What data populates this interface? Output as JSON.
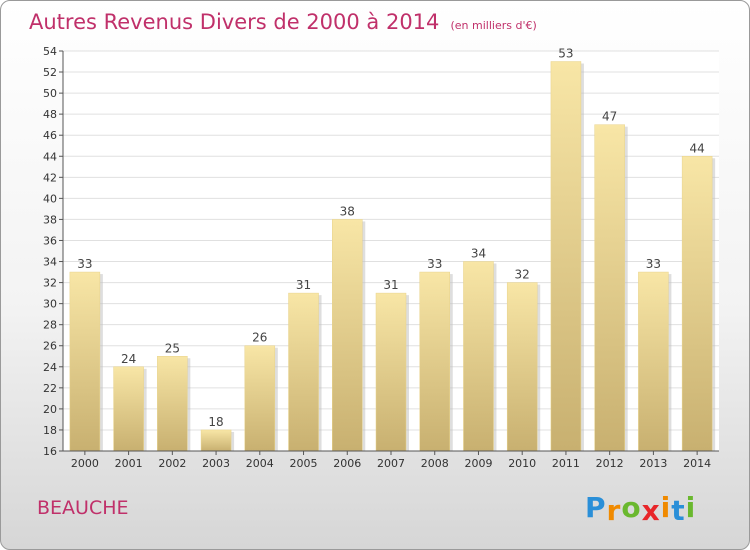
{
  "header": {
    "title": "Autres Revenus Divers de 2000 à 2014",
    "subtitle": "(en milliers d'€)"
  },
  "footer": {
    "commune": "BEAUCHE",
    "logo_letters": [
      "P",
      "r",
      "o",
      "x",
      "i",
      "t",
      "i"
    ]
  },
  "colors": {
    "title": "#c0306a",
    "bar_light": "#f8e6a6",
    "bar_dark": "#c8b070",
    "logo": [
      "#2a8fd8",
      "#f08a00",
      "#6ab82e",
      "#e8262a",
      "#f08a00",
      "#2a8fd8",
      "#6ab82e"
    ]
  },
  "chart_data": {
    "type": "bar",
    "categories": [
      "2000",
      "2001",
      "2002",
      "2003",
      "2004",
      "2005",
      "2006",
      "2007",
      "2008",
      "2009",
      "2010",
      "2011",
      "2012",
      "2013",
      "2014"
    ],
    "values": [
      33,
      24,
      25,
      18,
      26,
      31,
      38,
      31,
      33,
      34,
      32,
      53,
      47,
      33,
      44
    ],
    "ylim": [
      16,
      54
    ],
    "yticks": [
      16,
      18,
      20,
      22,
      24,
      26,
      28,
      30,
      32,
      34,
      36,
      38,
      40,
      42,
      44,
      46,
      48,
      50,
      52,
      54
    ],
    "grid": true,
    "legend": "none"
  }
}
